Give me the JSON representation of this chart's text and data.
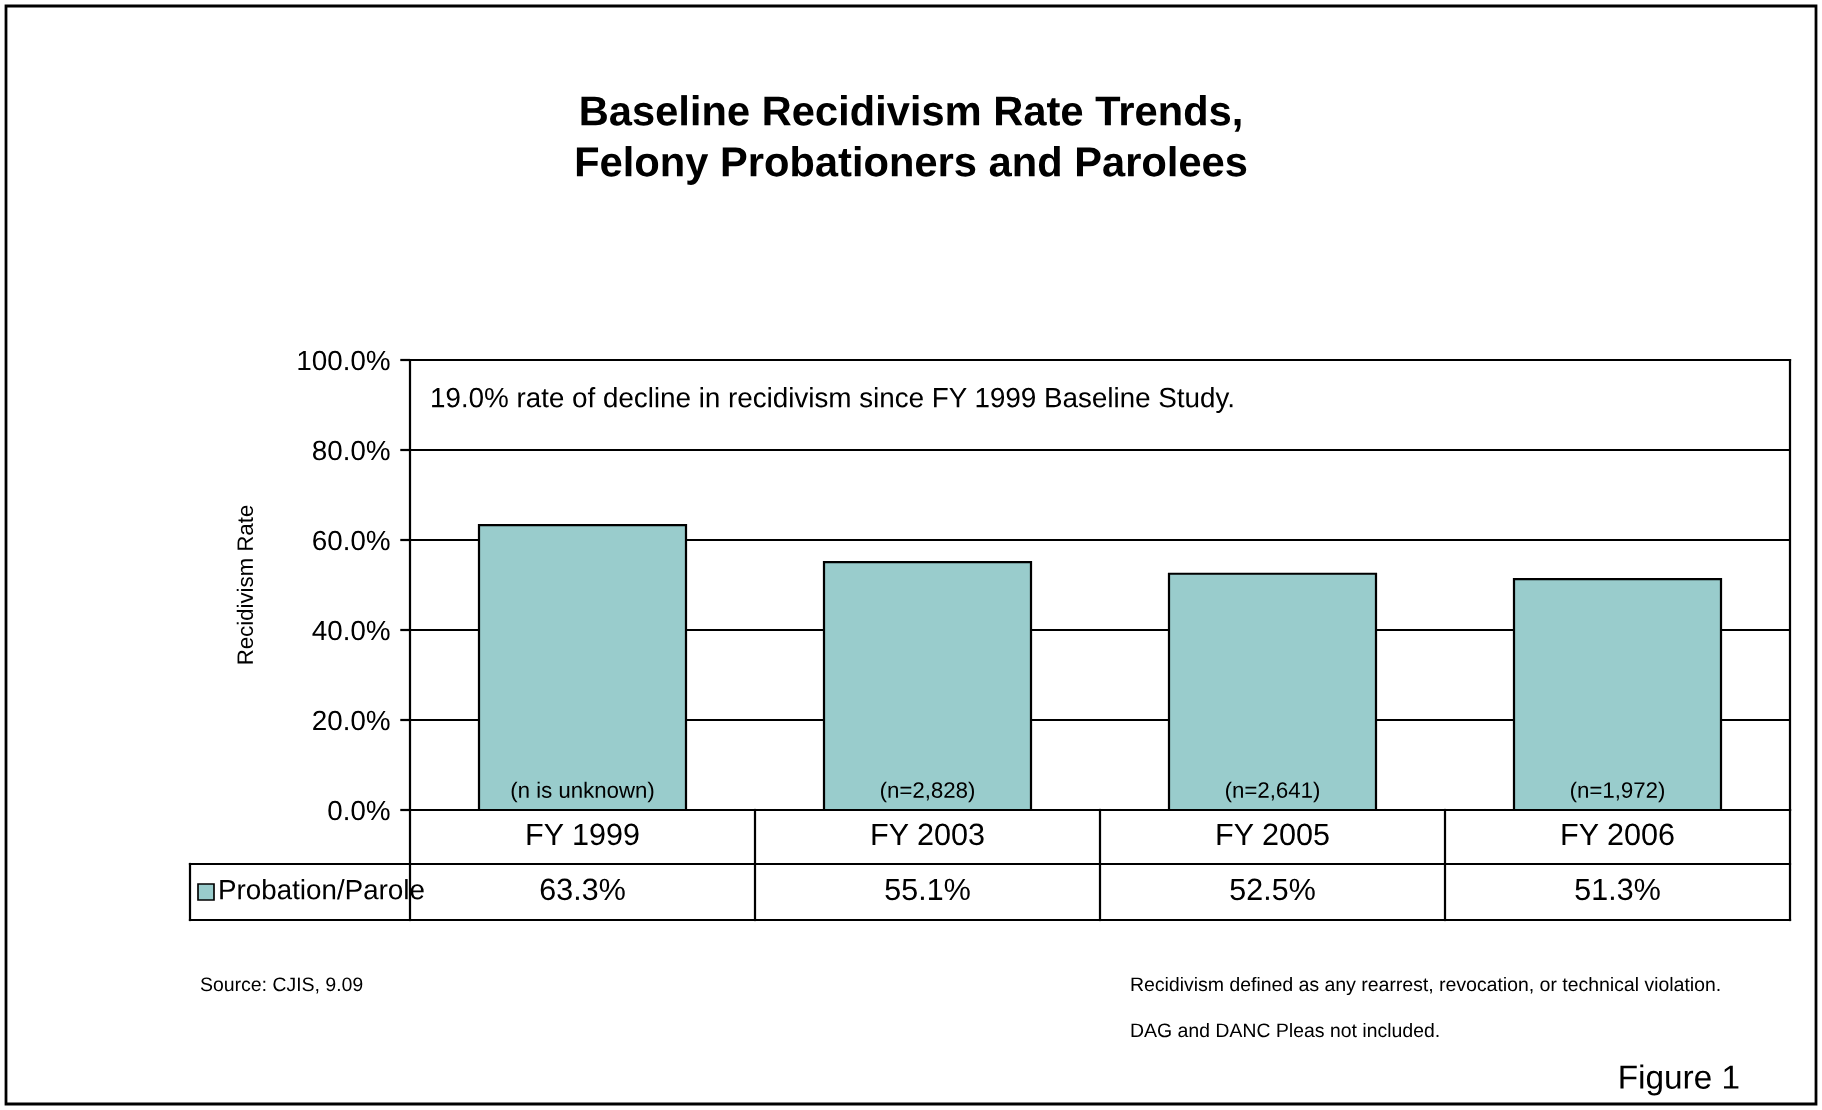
{
  "chart_data": {
    "type": "bar",
    "title": "Baseline Recidivism Rate Trends,\nFelony Probationers and Parolees",
    "ylabel": "Recidivism Rate",
    "categories": [
      "FY 1999",
      "FY 2003",
      "FY 2005",
      "FY 2006"
    ],
    "series": [
      {
        "name": "Probation/Parole",
        "color": "#99cccc",
        "values": [
          63.3,
          55.1,
          52.5,
          51.3
        ],
        "value_labels": [
          "63.3%",
          "55.1%",
          "52.5%",
          "51.3%"
        ]
      }
    ],
    "ylim": [
      0,
      100
    ],
    "yticks": [
      {
        "value": 0,
        "label": "0.0%"
      },
      {
        "value": 20,
        "label": "20.0%"
      },
      {
        "value": 40,
        "label": "40.0%"
      },
      {
        "value": 60,
        "label": "60.0%"
      },
      {
        "value": 80,
        "label": "80.0%"
      },
      {
        "value": 100,
        "label": "100.0%"
      }
    ],
    "grid": "y",
    "annotations": [
      "19.0% rate of decline in recidivism since FY 1999 Baseline Study.",
      "(n is unknown)",
      "(n=2,828)",
      "(n=2,641)",
      "(n=1,972)",
      "Source: CJIS, 9.09",
      "Recidivism defined as any rearrest, revocation, or technical violation.",
      "DAG and DANC Pleas not included.",
      "Figure 1"
    ]
  }
}
